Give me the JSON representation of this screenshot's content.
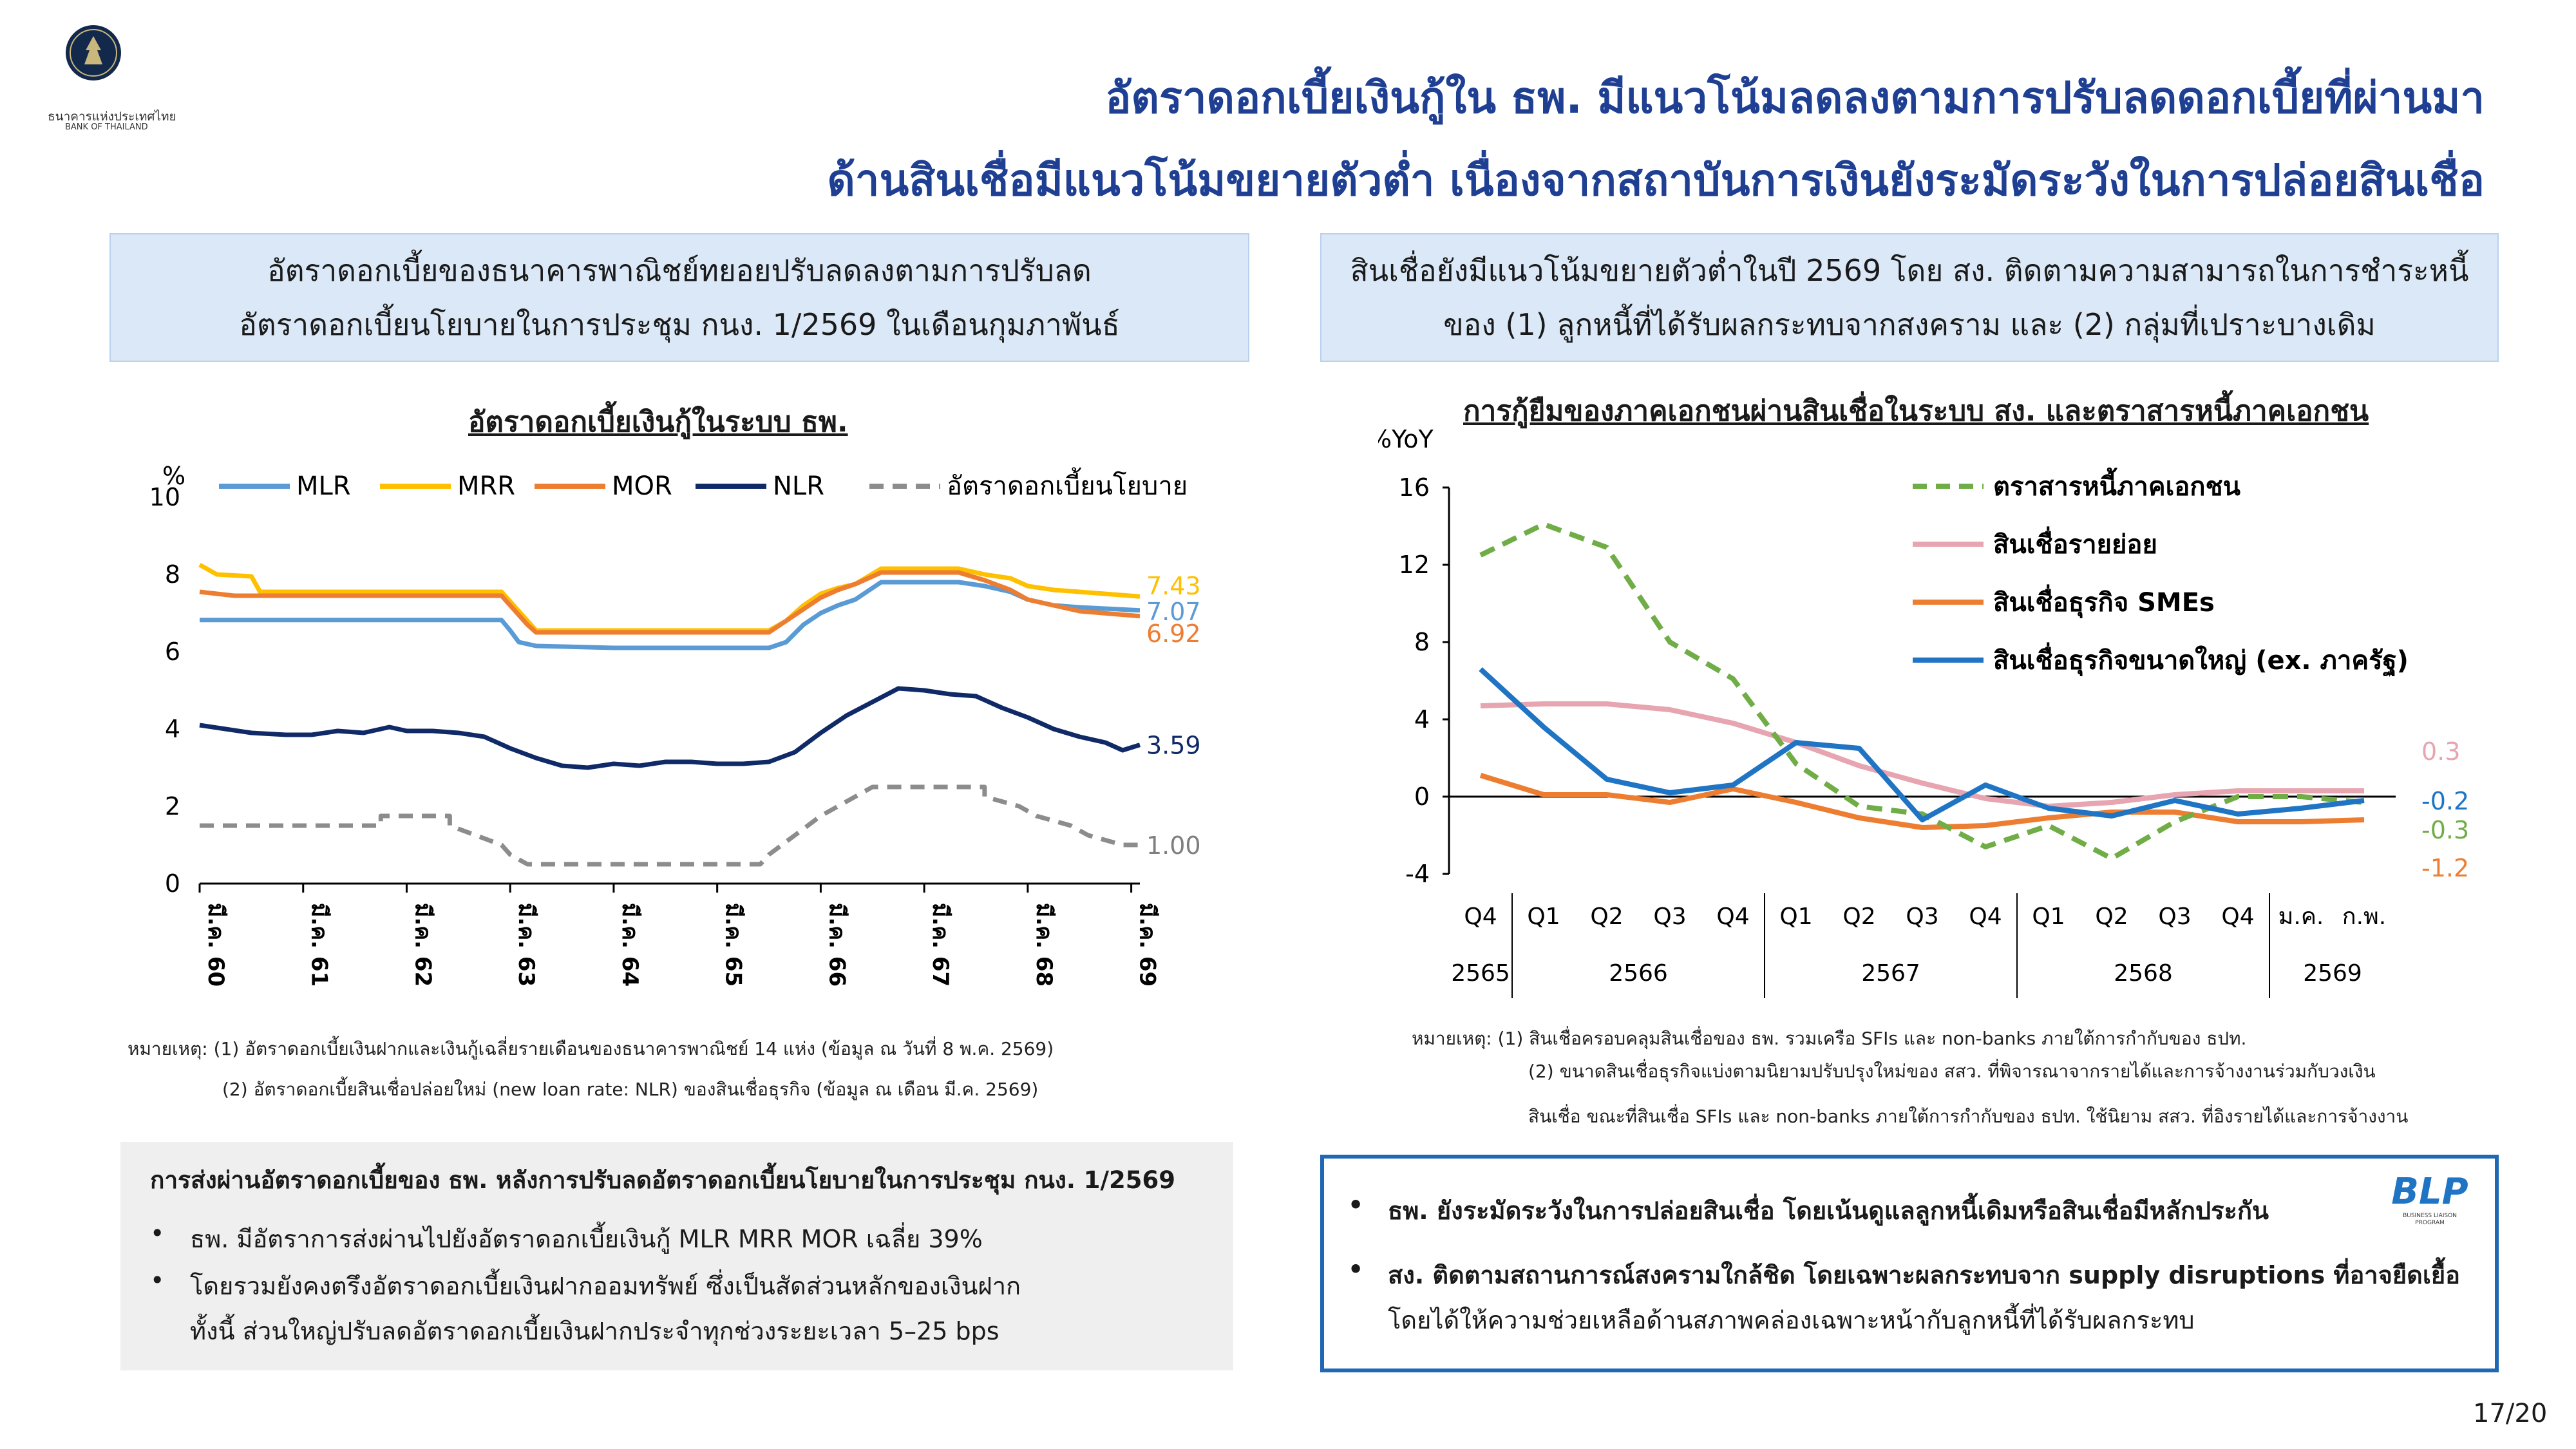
{
  "header": {
    "logo_text_thai": "ธนาคารแห่งประเทศไทย",
    "logo_text_en": "BANK OF THAILAND",
    "title_line1": "อัตราดอกเบี้ยเงินกู้ใน ธพ. มีแนวโน้มลดลงตามการปรับลดดอกเบี้ยที่ผ่านมา",
    "title_line2": "ด้านสินเชื่อมีแนวโน้มขยายตัวต่ำ เนื่องจากสถาบันการเงินยังระมัดระวังในการปล่อยสินเชื่อ"
  },
  "left_box": {
    "line1": "อัตราดอกเบี้ยของธนาคารพาณิชย์ทยอยปรับลดลงตามการปรับลด",
    "line2": "อัตราดอกเบี้ยนโยบายในการประชุม กนง. 1/2569 ในเดือนกุมภาพันธ์"
  },
  "right_box": {
    "line1": "สินเชื่อยังมีแนวโน้มขยายตัวต่ำในปี 2569 โดย สง. ติดตามความสามารถในการชำระหนี้",
    "line2": "ของ (1) ลูกหนี้ที่ได้รับผลกระทบจากสงคราม และ (2) กลุ่มที่เปราะบางเดิม"
  },
  "colors": {
    "title_blue": "#1f3f93",
    "MLR": "#5b9bd5",
    "MRR": "#ffc000",
    "MOR": "#ed7d31",
    "NLR": "#102a68",
    "policy": "#8c8c8c",
    "bond": "#70ad47",
    "retail": "#e6a5b0",
    "sme": "#ed7d31",
    "large": "#1f74c4"
  },
  "chart_data": [
    {
      "type": "line",
      "title": "อัตราดอกเบี้ยเงินกู้ในระบบ ธพ.",
      "ylabel": "%",
      "ylim": [
        0,
        10
      ],
      "yticks": [
        "0",
        "2",
        "4",
        "6",
        "8",
        "10"
      ],
      "xticks": [
        "มี.ค. 60",
        "มี.ค. 61",
        "มี.ค. 62",
        "มี.ค. 63",
        "มี.ค. 64",
        "มี.ค. 65",
        "มี.ค. 66",
        "มี.ค. 67",
        "มี.ค. 68",
        "มี.ค. 69"
      ],
      "x_start": "2017-03",
      "x_end": "2026-04",
      "legend": "top",
      "series": [
        {
          "name": "MLR",
          "points": [
            [
              "2017-03",
              6.82
            ],
            [
              "2019-03",
              6.82
            ],
            [
              "2020-02",
              6.82
            ],
            [
              "2020-03",
              6.55
            ],
            [
              "2020-04",
              6.25
            ],
            [
              "2020-06",
              6.15
            ],
            [
              "2021-03",
              6.1
            ],
            [
              "2022-03",
              6.1
            ],
            [
              "2022-09",
              6.1
            ],
            [
              "2022-11",
              6.25
            ],
            [
              "2023-01",
              6.7
            ],
            [
              "2023-03",
              7.0
            ],
            [
              "2023-05",
              7.2
            ],
            [
              "2023-07",
              7.35
            ],
            [
              "2023-10",
              7.8
            ],
            [
              "2024-03",
              7.8
            ],
            [
              "2024-07",
              7.8
            ],
            [
              "2024-10",
              7.7
            ],
            [
              "2025-01",
              7.55
            ],
            [
              "2025-03",
              7.35
            ],
            [
              "2025-06",
              7.2
            ],
            [
              "2025-09",
              7.15
            ],
            [
              "2026-04",
              7.07
            ]
          ],
          "end_label": "7.07"
        },
        {
          "name": "MRR",
          "points": [
            [
              "2017-03",
              8.25
            ],
            [
              "2017-05",
              8.0
            ],
            [
              "2017-09",
              7.95
            ],
            [
              "2017-10",
              7.55
            ],
            [
              "2019-03",
              7.55
            ],
            [
              "2020-02",
              7.55
            ],
            [
              "2020-03",
              7.3
            ],
            [
              "2020-05",
              6.8
            ],
            [
              "2020-06",
              6.55
            ],
            [
              "2022-09",
              6.55
            ],
            [
              "2022-11",
              6.8
            ],
            [
              "2023-01",
              7.2
            ],
            [
              "2023-03",
              7.5
            ],
            [
              "2023-05",
              7.65
            ],
            [
              "2023-07",
              7.75
            ],
            [
              "2023-10",
              8.15
            ],
            [
              "2024-07",
              8.15
            ],
            [
              "2024-10",
              8.0
            ],
            [
              "2025-01",
              7.9
            ],
            [
              "2025-03",
              7.7
            ],
            [
              "2025-06",
              7.6
            ],
            [
              "2025-09",
              7.55
            ],
            [
              "2026-04",
              7.43
            ]
          ],
          "end_label": "7.43"
        },
        {
          "name": "MOR",
          "points": [
            [
              "2017-03",
              7.55
            ],
            [
              "2017-07",
              7.45
            ],
            [
              "2019-03",
              7.45
            ],
            [
              "2020-02",
              7.45
            ],
            [
              "2020-03",
              7.2
            ],
            [
              "2020-05",
              6.7
            ],
            [
              "2020-06",
              6.5
            ],
            [
              "2022-09",
              6.5
            ],
            [
              "2022-11",
              6.8
            ],
            [
              "2023-01",
              7.1
            ],
            [
              "2023-03",
              7.4
            ],
            [
              "2023-05",
              7.6
            ],
            [
              "2023-07",
              7.75
            ],
            [
              "2023-10",
              8.05
            ],
            [
              "2024-07",
              8.05
            ],
            [
              "2024-10",
              7.85
            ],
            [
              "2025-01",
              7.6
            ],
            [
              "2025-03",
              7.35
            ],
            [
              "2025-06",
              7.2
            ],
            [
              "2025-09",
              7.05
            ],
            [
              "2026-04",
              6.92
            ]
          ],
          "end_label": "6.92"
        },
        {
          "name": "NLR",
          "points": [
            [
              "2017-03",
              4.1
            ],
            [
              "2017-06",
              4.0
            ],
            [
              "2017-09",
              3.9
            ],
            [
              "2018-01",
              3.85
            ],
            [
              "2018-04",
              3.85
            ],
            [
              "2018-07",
              3.95
            ],
            [
              "2018-10",
              3.9
            ],
            [
              "2019-01",
              4.05
            ],
            [
              "2019-03",
              3.95
            ],
            [
              "2019-06",
              3.95
            ],
            [
              "2019-09",
              3.9
            ],
            [
              "2019-12",
              3.8
            ],
            [
              "2020-03",
              3.5
            ],
            [
              "2020-06",
              3.25
            ],
            [
              "2020-09",
              3.05
            ],
            [
              "2020-12",
              3.0
            ],
            [
              "2021-03",
              3.1
            ],
            [
              "2021-06",
              3.05
            ],
            [
              "2021-09",
              3.15
            ],
            [
              "2021-12",
              3.15
            ],
            [
              "2022-03",
              3.1
            ],
            [
              "2022-06",
              3.1
            ],
            [
              "2022-09",
              3.15
            ],
            [
              "2022-12",
              3.4
            ],
            [
              "2023-03",
              3.9
            ],
            [
              "2023-06",
              4.35
            ],
            [
              "2023-09",
              4.7
            ],
            [
              "2023-12",
              5.05
            ],
            [
              "2024-03",
              5.0
            ],
            [
              "2024-06",
              4.9
            ],
            [
              "2024-09",
              4.85
            ],
            [
              "2024-12",
              4.55
            ],
            [
              "2025-03",
              4.3
            ],
            [
              "2025-06",
              4.0
            ],
            [
              "2025-09",
              3.8
            ],
            [
              "2025-12",
              3.65
            ],
            [
              "2026-02",
              3.45
            ],
            [
              "2026-04",
              3.59
            ]
          ],
          "end_label": "3.59"
        },
        {
          "name": "อัตราดอกเบี้ยนโยบาย",
          "dashed": true,
          "points": [
            [
              "2017-03",
              1.5
            ],
            [
              "2018-12",
              1.5
            ],
            [
              "2018-12",
              1.75
            ],
            [
              "2019-08",
              1.75
            ],
            [
              "2019-08",
              1.5
            ],
            [
              "2019-11",
              1.25
            ],
            [
              "2020-02",
              1.0
            ],
            [
              "2020-03",
              0.75
            ],
            [
              "2020-05",
              0.5
            ],
            [
              "2022-08",
              0.5
            ],
            [
              "2022-09",
              0.75
            ],
            [
              "2022-12",
              1.25
            ],
            [
              "2023-03",
              1.75
            ],
            [
              "2023-07",
              2.25
            ],
            [
              "2023-09",
              2.5
            ],
            [
              "2024-10",
              2.5
            ],
            [
              "2024-10",
              2.25
            ],
            [
              "2025-02",
              2.0
            ],
            [
              "2025-04",
              1.75
            ],
            [
              "2025-08",
              1.5
            ],
            [
              "2025-10",
              1.25
            ],
            [
              "2026-02",
              1.0
            ],
            [
              "2026-04",
              1.0
            ]
          ],
          "end_label": "1.00"
        }
      ]
    },
    {
      "type": "line",
      "title": "การกู้ยืมของภาคเอกชนผ่านสินเชื่อในระบบ สง. และตราสารหนี้ภาคเอกชน",
      "ylabel": "%YoY",
      "ylim": [
        -4,
        16
      ],
      "yticks": [
        "-4",
        "0",
        "4",
        "8",
        "12",
        "16"
      ],
      "categories": [
        "Q4",
        "Q1",
        "Q2",
        "Q3",
        "Q4",
        "Q1",
        "Q2",
        "Q3",
        "Q4",
        "Q1",
        "Q2",
        "Q3",
        "Q4",
        "ม.ค.",
        "ก.พ."
      ],
      "years": [
        {
          "label": "2565",
          "from": 0,
          "to": 0
        },
        {
          "label": "2566",
          "from": 1,
          "to": 4
        },
        {
          "label": "2567",
          "from": 5,
          "to": 8
        },
        {
          "label": "2568",
          "from": 9,
          "to": 12
        },
        {
          "label": "2569",
          "from": 13,
          "to": 14
        }
      ],
      "legend": "top-right",
      "series": [
        {
          "name": "ตราสารหนี้ภาคเอกชน",
          "dashed": true,
          "values": [
            12.5,
            14.1,
            12.9,
            8.0,
            6.1,
            1.7,
            -0.5,
            -0.9,
            -2.6,
            -1.5,
            -3.2,
            -1.3,
            0.0,
            0.0,
            -0.3
          ],
          "end_label": "-0.3"
        },
        {
          "name": "สินเชื่อรายย่อย",
          "values": [
            4.7,
            4.8,
            4.8,
            4.5,
            3.8,
            2.8,
            1.6,
            0.7,
            -0.1,
            -0.5,
            -0.3,
            0.1,
            0.3,
            0.3,
            0.3
          ],
          "end_label": "0.3"
        },
        {
          "name": "สินเชื่อธุรกิจ SMEs",
          "values": [
            1.1,
            0.1,
            0.1,
            -0.3,
            0.4,
            -0.3,
            -1.1,
            -1.6,
            -1.5,
            -1.1,
            -0.8,
            -0.8,
            -1.3,
            -1.3,
            -1.2
          ],
          "end_label": "-1.2"
        },
        {
          "name": "สินเชื่อธุรกิจขนาดใหญ่ (ex. ภาครัฐ)",
          "values": [
            6.6,
            3.6,
            0.9,
            0.2,
            0.6,
            2.8,
            2.5,
            -1.2,
            0.6,
            -0.6,
            -1.0,
            -0.2,
            -0.9,
            -0.6,
            -0.2
          ],
          "end_label": "-0.2"
        }
      ]
    }
  ],
  "notes_left": {
    "line1": "หมายเหตุ: (1) อัตราดอกเบี้ยเงินฝากและเงินกู้เฉลี่ยรายเดือนของธนาคารพาณิชย์ 14 แห่ง (ข้อมูล ณ วันที่ 8 พ.ค. 2569)",
    "line2": "(2) อัตราดอกเบี้ยสินเชื่อปล่อยใหม่ (new loan rate: NLR) ของสินเชื่อธุรกิจ (ข้อมูล ณ เดือน มี.ค. 2569)"
  },
  "notes_right": {
    "line1": "หมายเหตุ: (1) สินเชื่อครอบคลุมสินเชื่อของ ธพ. รวมเครือ SFIs และ non-banks ภายใต้การกำกับของ ธปท.",
    "line2": "(2) ขนาดสินเชื่อธุรกิจแบ่งตามนิยามปรับปรุงใหม่ของ สสว. ที่พิจารณาจากรายได้และการจ้างงานร่วมกับวงเงิน",
    "line3": "สินเชื่อ ขณะที่สินเชื่อ SFIs และ non-banks ภายใต้การกำกับของ ธปท. ใช้นิยาม สสว. ที่อิงรายได้และการจ้างงาน"
  },
  "left_bottom": {
    "heading": "การส่งผ่านอัตราดอกเบี้ยของ ธพ. หลังการปรับลดอัตราดอกเบี้ยนโยบายในการประชุม กนง. 1/2569",
    "bullet1": "ธพ. มีอัตราการส่งผ่านไปยังอัตราดอกเบี้ยเงินกู้ MLR MRR MOR เฉลี่ย 39%",
    "bullet2_line1": "โดยรวมยังคงตรึงอัตราดอกเบี้ยเงินฝากออมทรัพย์ ซึ่งเป็นสัดส่วนหลักของเงินฝาก",
    "bullet2_line2": "ทั้งนี้ ส่วนใหญ่ปรับลดอัตราดอกเบี้ยเงินฝากประจำทุกช่วงระยะเวลา 5–25 bps"
  },
  "right_bottom": {
    "bullet1": "ธพ. ยังระมัดระวังในการปล่อยสินเชื่อ โดยเน้นดูแลลูกหนี้เดิมหรือสินเชื่อมีหลักประกัน",
    "bullet2_line1": "สง. ติดตามสถานการณ์สงครามใกล้ชิด โดยเฉพาะผลกระทบจาก supply disruptions ที่อาจยืดเยื้อ",
    "bullet2_line2": "โดยได้ให้ความช่วยเหลือด้านสภาพคล่องเฉพาะหน้ากับลูกหนี้ที่ได้รับผลกระทบ",
    "blp_logo": "BLP",
    "blp_sub1": "BUSINESS LIAISON",
    "blp_sub2": "PROGRAM"
  },
  "page_number": "17/20"
}
